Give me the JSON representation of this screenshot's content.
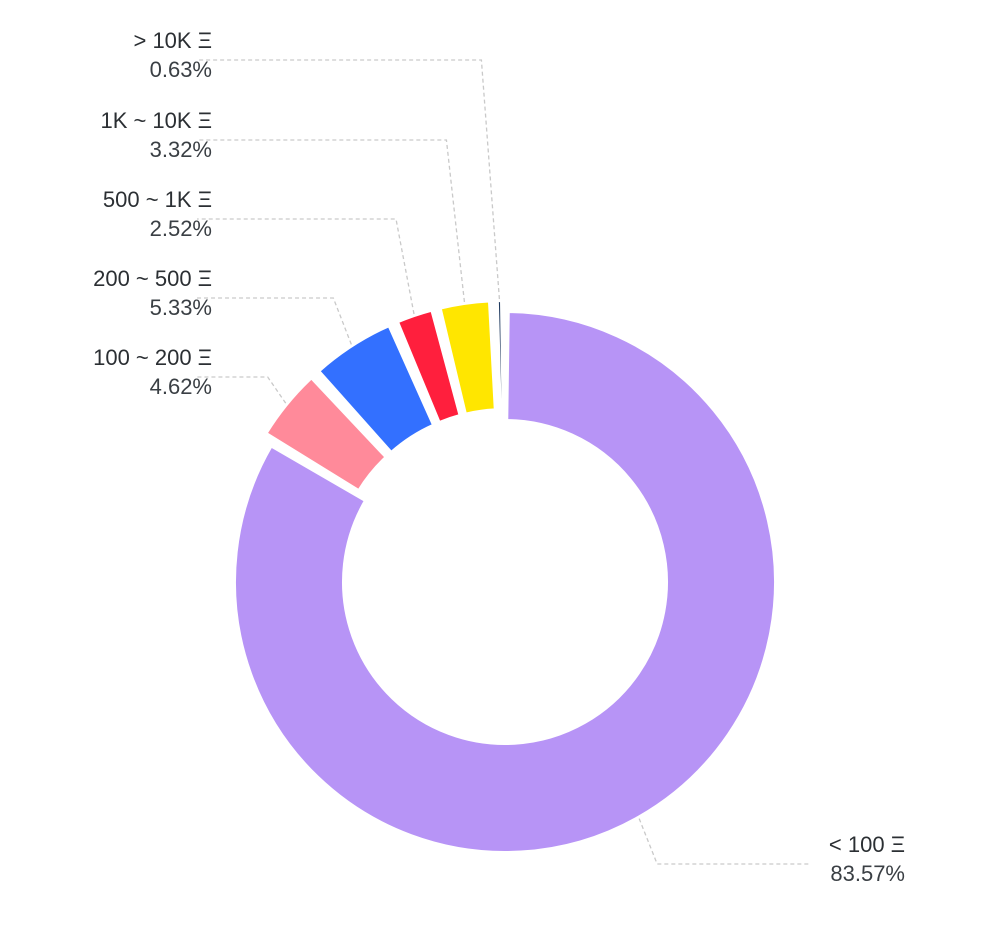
{
  "chart_data": {
    "type": "pie",
    "variant": "donut",
    "slices": [
      {
        "label": "< 100 Ξ",
        "value": 83.57,
        "display": "83.57%",
        "color": "#b794f6"
      },
      {
        "label": "100 ~ 200 Ξ",
        "value": 4.62,
        "display": "4.62%",
        "color": "#ff8a9a"
      },
      {
        "label": "200 ~ 500 Ξ",
        "value": 5.33,
        "display": "5.33%",
        "color": "#3370ff"
      },
      {
        "label": "500 ~ 1K Ξ",
        "value": 2.52,
        "display": "2.52%",
        "color": "#ff1f3d"
      },
      {
        "label": "1K ~ 10K Ξ",
        "value": 3.32,
        "display": "3.32%",
        "color": "#ffe600"
      },
      {
        "label": "> 10K Ξ",
        "value": 0.63,
        "display": "0.63%",
        "color": "#1f3a5f"
      }
    ],
    "legend": "none"
  }
}
